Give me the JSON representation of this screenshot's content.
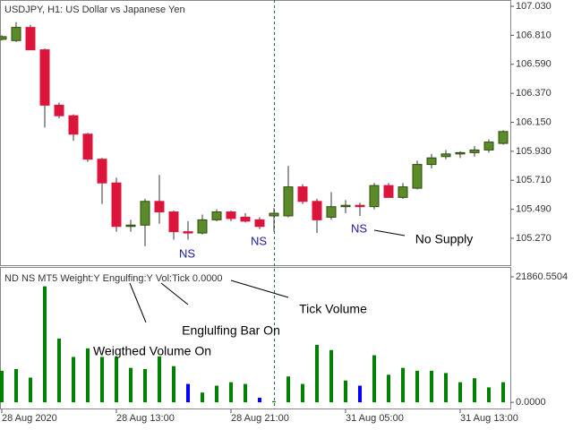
{
  "chart_data": [
    {
      "type": "candlestick",
      "title": "USDJPY, H1:  US Dollar vs Japanese Yen",
      "open": [
        106.78,
        106.77,
        106.87,
        106.7,
        106.28,
        106.2,
        106.06,
        105.87,
        105.69,
        105.36,
        105.37,
        105.55,
        105.47,
        105.32,
        105.31,
        105.41,
        105.47,
        105.43,
        105.41,
        105.44,
        105.44,
        105.66,
        105.55,
        105.43,
        105.51,
        105.52,
        105.51,
        105.67,
        105.58,
        105.65,
        105.83,
        105.89,
        105.91,
        105.92,
        105.94,
        105.99
      ],
      "high": [
        106.81,
        106.91,
        106.89,
        106.71,
        106.3,
        106.21,
        106.07,
        105.88,
        105.73,
        105.41,
        105.57,
        105.75,
        105.48,
        105.4,
        105.45,
        105.49,
        105.48,
        105.46,
        105.43,
        105.5,
        105.82,
        105.68,
        105.57,
        105.62,
        105.56,
        105.54,
        105.69,
        105.69,
        105.69,
        105.86,
        105.91,
        105.94,
        105.93,
        105.97,
        106.02,
        106.09
      ],
      "low": [
        106.77,
        106.76,
        106.7,
        106.11,
        106.18,
        106.01,
        105.85,
        105.53,
        105.32,
        105.32,
        105.21,
        105.38,
        105.26,
        105.26,
        105.3,
        105.4,
        105.4,
        105.39,
        105.34,
        105.32,
        105.43,
        105.53,
        105.31,
        105.41,
        105.46,
        105.44,
        105.49,
        105.58,
        105.57,
        105.64,
        105.8,
        105.87,
        105.88,
        105.89,
        105.92,
        105.98
      ],
      "close": [
        106.8,
        106.87,
        106.7,
        106.28,
        106.2,
        106.06,
        105.87,
        105.69,
        105.36,
        105.37,
        105.55,
        105.47,
        105.32,
        105.31,
        105.41,
        105.47,
        105.42,
        105.4,
        105.36,
        105.46,
        105.66,
        105.55,
        105.41,
        105.51,
        105.52,
        105.51,
        105.67,
        105.58,
        105.66,
        105.83,
        105.88,
        105.91,
        105.92,
        105.94,
        106.0,
        106.08
      ],
      "up_color": "#5b8c27",
      "down_color": "#dc143c",
      "ylim": [
        105.066,
        107.078
      ],
      "yticks": [
        {
          "value": 107.03,
          "label": "107.030"
        },
        {
          "value": 106.81,
          "label": "106.810"
        },
        {
          "value": 106.59,
          "label": "106.590"
        },
        {
          "value": 106.37,
          "label": "106.370"
        },
        {
          "value": 106.15,
          "label": "106.150"
        },
        {
          "value": 105.93,
          "label": "105.930"
        },
        {
          "value": 105.71,
          "label": "105.710"
        },
        {
          "value": 105.49,
          "label": "105.490"
        },
        {
          "value": 105.27,
          "label": "105.270"
        }
      ],
      "annotations": [
        "NS",
        "NS",
        "NS",
        "No Supply"
      ]
    },
    {
      "type": "bar",
      "title": "ND NS MT5 Weight:Y Engulfing:Y Vol:Tick 0.0000",
      "categories": [
        "28 Aug 2020",
        null,
        null,
        null,
        null,
        null,
        null,
        null,
        "28 Aug 13:00",
        null,
        null,
        null,
        null,
        null,
        null,
        null,
        "28 Aug 21:00",
        null,
        null,
        null,
        null,
        null,
        null,
        null,
        "31 Aug 05:00",
        null,
        null,
        null,
        null,
        null,
        null,
        null,
        "31 Aug 13:00",
        null,
        null,
        null
      ],
      "values": [
        5500,
        5800,
        4300,
        20200,
        11100,
        7900,
        9400,
        7900,
        7900,
        6000,
        5800,
        8000,
        6300,
        3200,
        1700,
        2900,
        3500,
        3200,
        800,
        200,
        4500,
        3200,
        10000,
        9100,
        3800,
        2900,
        8200,
        4800,
        6000,
        5500,
        5500,
        5100,
        3500,
        4200,
        2600,
        3500
      ],
      "colors": [
        "#008000",
        "#008000",
        "#008000",
        "#008000",
        "#008000",
        "#008000",
        "#008000",
        "#008000",
        "#008000",
        "#008000",
        "#008000",
        "#008000",
        "#008000",
        "#0000ff",
        "#008000",
        "#008000",
        "#008000",
        "#008000",
        "#0000ff",
        "#008000",
        "#008000",
        "#008000",
        "#008000",
        "#008000",
        "#008000",
        "#0000ff",
        "#008000",
        "#008000",
        "#008000",
        "#008000",
        "#008000",
        "#008000",
        "#008000",
        "#008000",
        "#008000",
        "#008000"
      ],
      "ylim": [
        -1232,
        23571
      ],
      "yticks": [
        21860.5504,
        {
          "value": 0,
          "label": "0.0000"
        }
      ],
      "annotations": [
        "Tick Volume",
        "Englulfing Bar On",
        "Weigthed Volume On"
      ]
    }
  ]
}
